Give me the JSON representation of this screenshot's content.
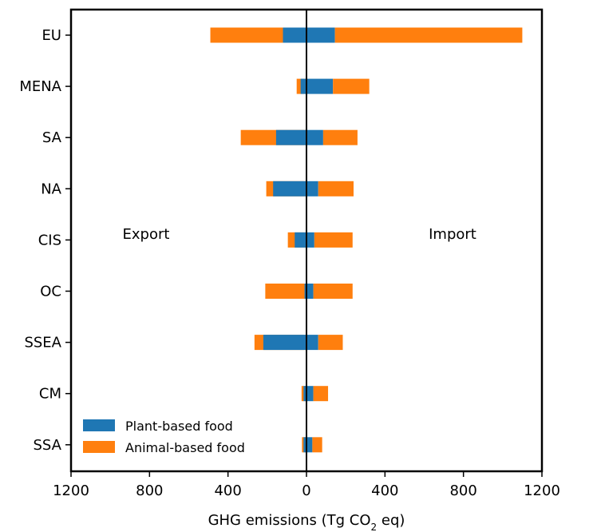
{
  "chart_data": {
    "type": "bar",
    "orientation": "horizontal",
    "stacked": true,
    "diverging": true,
    "categories": [
      "EU",
      "MENA",
      "SA",
      "NA",
      "CIS",
      "OC",
      "SSEA",
      "CM",
      "SSA"
    ],
    "series": [
      {
        "name": "Plant-based food",
        "color": "#1f77b4",
        "export": [
          -120,
          -30,
          -155,
          -170,
          -60,
          -10,
          -220,
          -15,
          -15
        ],
        "import": [
          145,
          135,
          85,
          60,
          40,
          35,
          60,
          35,
          30
        ]
      },
      {
        "name": "Animal-based food",
        "color": "#ff7f0e",
        "export": [
          -370,
          -20,
          -180,
          -35,
          -35,
          -200,
          -45,
          -10,
          -8
        ],
        "import": [
          955,
          185,
          175,
          180,
          195,
          200,
          125,
          75,
          50
        ]
      }
    ],
    "xlim": [
      -1200,
      1200
    ],
    "xticks": [
      -1200,
      -800,
      -400,
      0,
      400,
      800,
      1200
    ],
    "xtick_labels": [
      "1200",
      "800",
      "400",
      "0",
      "400",
      "800",
      "1200"
    ],
    "xlabel_prefix": "GHG emissions (Tg CO",
    "xlabel_sub": "2",
    "xlabel_suffix": " eq)",
    "annotations": [
      "Export",
      "Import"
    ],
    "legend": [
      "Plant-based food",
      "Animal-based food"
    ],
    "legend_position": "lower-left",
    "grid": false
  }
}
